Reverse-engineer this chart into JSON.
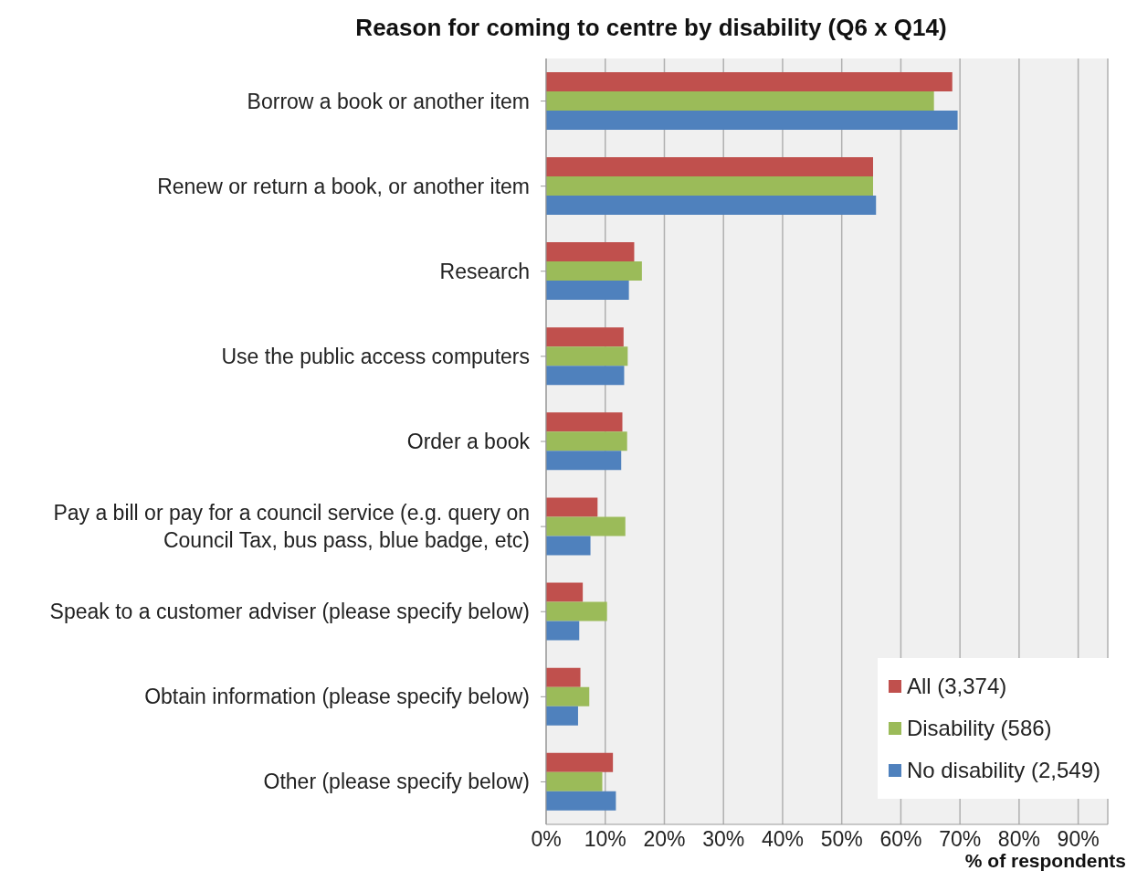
{
  "chart_data": {
    "type": "bar",
    "orientation": "horizontal",
    "title": "Reason for coming to centre by disability (Q6 x Q14)",
    "xlabel": "% of respondents",
    "categories": [
      "Borrow a book or another item",
      "Renew or return a book, or another item",
      "Research",
      "Use the public access computers",
      "Order a book",
      "Pay a bill or pay for a council service (e.g. query on Council Tax, bus pass, blue badge, etc)",
      "Speak to a customer adviser (please specify below)",
      "Obtain information (please specify below)",
      "Other (please specify below)"
    ],
    "series": [
      {
        "name": "All (3,374)",
        "color": "#c0504d",
        "values": [
          68.7,
          55.3,
          14.9,
          13.1,
          12.9,
          8.7,
          6.2,
          5.8,
          11.3
        ]
      },
      {
        "name": "Disability (586)",
        "color": "#9bbb59",
        "values": [
          65.6,
          55.3,
          16.2,
          13.8,
          13.7,
          13.4,
          10.3,
          7.3,
          9.5
        ]
      },
      {
        "name": "No disability (2,549)",
        "color": "#4f81bd",
        "values": [
          69.6,
          55.8,
          14.0,
          13.2,
          12.7,
          7.5,
          5.6,
          5.4,
          11.8
        ]
      }
    ],
    "xlim": [
      0,
      95
    ],
    "xticks": [
      {
        "value": 0,
        "label": "0%"
      },
      {
        "value": 10,
        "label": "10%"
      },
      {
        "value": 20,
        "label": "20%"
      },
      {
        "value": 30,
        "label": "30%"
      },
      {
        "value": 40,
        "label": "40%"
      },
      {
        "value": 50,
        "label": "50%"
      },
      {
        "value": 60,
        "label": "60%"
      },
      {
        "value": 70,
        "label": "70%"
      },
      {
        "value": 80,
        "label": "80%"
      },
      {
        "value": 90,
        "label": "90%"
      }
    ],
    "grid": "x",
    "legend": "bottom right"
  }
}
